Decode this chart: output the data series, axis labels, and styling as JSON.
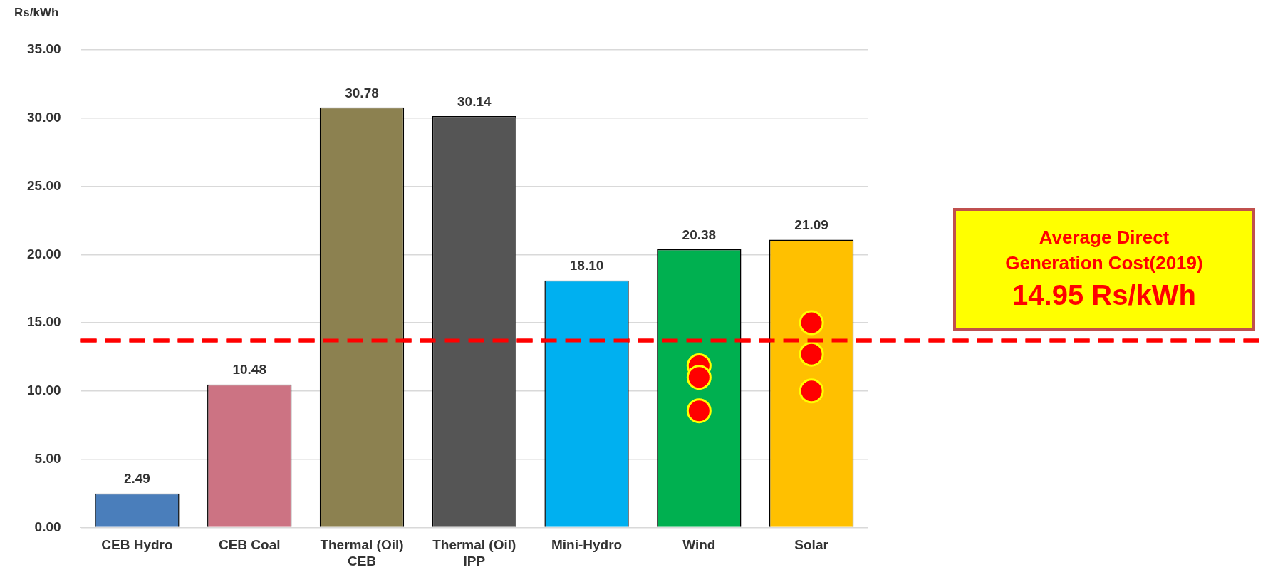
{
  "chart_data": {
    "type": "bar",
    "ylabel": "Rs/kWh",
    "categories": [
      "CEB Hydro",
      "CEB Coal",
      "Thermal (Oil) CEB",
      "Thermal (Oil) IPP",
      "Mini-Hydro",
      "Wind",
      "Solar"
    ],
    "values": [
      2.49,
      10.48,
      30.78,
      30.14,
      18.1,
      20.38,
      21.09
    ],
    "colors": [
      "#4a7ebb",
      "#cc7383",
      "#8c8150",
      "#555555",
      "#00b0f0",
      "#00b050",
      "#ffc000"
    ],
    "value_labels": [
      "2.49",
      "10.48",
      "30.78",
      "30.14",
      "18.10",
      "20.38",
      "21.09"
    ],
    "series": [
      {
        "type": "scatter",
        "color": "#ff0000",
        "marker": "circle",
        "x": [
          "Wind",
          "Wind",
          "Wind",
          "Solar",
          "Solar",
          "Solar"
        ],
        "values": [
          11.85,
          11.0,
          8.55,
          15.0,
          12.7,
          10.0
        ]
      }
    ],
    "ylim": [
      0,
      35
    ],
    "yticks": [
      {
        "value": 0,
        "label": "0.00"
      },
      {
        "value": 5,
        "label": "5.00"
      },
      {
        "value": 10,
        "label": "10.00"
      },
      {
        "value": 15,
        "label": "15.00"
      },
      {
        "value": 20,
        "label": "20.00"
      },
      {
        "value": 25,
        "label": "25.00"
      },
      {
        "value": 30,
        "label": "30.00"
      },
      {
        "value": 35,
        "label": "35.00"
      }
    ],
    "grid": "y",
    "ref_lines": [
      {
        "axis": "y",
        "value": 13.7,
        "color": "#ff0000",
        "line_style": "dashed"
      }
    ],
    "annotations": [
      "Average Direct Generation Cost(2019)",
      "14.95 Rs/kWh"
    ]
  }
}
